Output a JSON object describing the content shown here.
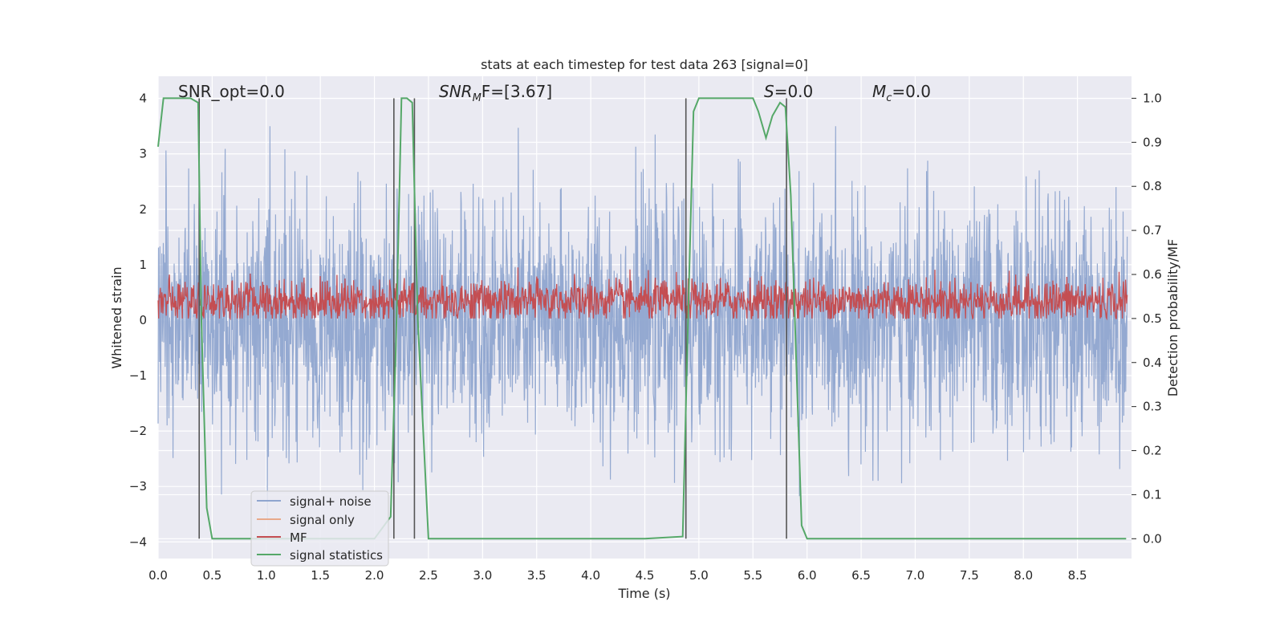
{
  "chart_data": {
    "type": "line",
    "title": "stats at each timestep for test data 263 [signal=0]",
    "xlabel": "Time (s)",
    "ylabel": "Whitened strain",
    "y2label": "Detection probability/MF",
    "xlim": [
      0.0,
      9.0
    ],
    "ylim": [
      -4.3,
      4.4
    ],
    "y2lim": [
      -0.045,
      1.05
    ],
    "xticks": [
      "0.0",
      "0.5",
      "1.0",
      "1.5",
      "2.0",
      "2.5",
      "3.0",
      "3.5",
      "4.0",
      "4.5",
      "5.0",
      "5.5",
      "6.0",
      "6.5",
      "7.0",
      "7.5",
      "8.0",
      "8.5"
    ],
    "yticks": [
      "4",
      "3",
      "2",
      "1",
      "0",
      "−1",
      "−2",
      "−3",
      "−4"
    ],
    "y2ticks": [
      "1.0",
      "0.9",
      "0.8",
      "0.7",
      "0.6",
      "0.5",
      "0.4",
      "0.3",
      "0.2",
      "0.1",
      "0.0"
    ],
    "grid": true,
    "legend_position": "lower-left",
    "annotations": {
      "snr_opt": "SNR_opt=0.0",
      "snr_mf_main": "SNR",
      "snr_mf_sub": "M",
      "snr_mf_rest": "F=[3.67]",
      "s_main": "S",
      "s_rest": "=0.0",
      "mc_main": "M",
      "mc_sub": "c",
      "mc_rest": "=0.0"
    },
    "series": [
      {
        "name": "signal+ noise",
        "color": "#8fa5cf",
        "description_range": [
          -3.6,
          3.5
        ]
      },
      {
        "name": "signal only",
        "color": "#e8a98a",
        "values": []
      },
      {
        "name": "MF",
        "color": "#c44e52",
        "range_on_y2": [
          0.5,
          0.63
        ]
      },
      {
        "name": "signal statistics",
        "color": "#55a868",
        "axis": "y2",
        "x": [
          0.0,
          0.05,
          0.1,
          0.2,
          0.3,
          0.37,
          0.4,
          0.45,
          0.5,
          1.0,
          1.5,
          2.0,
          2.15,
          2.2,
          2.25,
          2.3,
          2.35,
          2.4,
          2.5,
          3.0,
          3.5,
          4.0,
          4.5,
          4.85,
          4.9,
          4.95,
          5.0,
          5.5,
          5.55,
          5.62,
          5.68,
          5.75,
          5.8,
          5.85,
          5.95,
          6.0,
          6.5,
          7.0,
          7.5,
          8.0,
          8.5,
          8.95
        ],
        "y": [
          0.89,
          1.0,
          1.0,
          1.0,
          1.0,
          0.99,
          0.5,
          0.07,
          0.0,
          0.0,
          0.0,
          0.0,
          0.05,
          0.45,
          1.0,
          1.0,
          0.99,
          0.5,
          0.0,
          0.0,
          0.0,
          0.0,
          0.0,
          0.005,
          0.5,
          0.97,
          1.0,
          1.0,
          0.97,
          0.91,
          0.96,
          0.99,
          0.98,
          0.78,
          0.03,
          0.0,
          0.0,
          0.0,
          0.0,
          0.0,
          0.0,
          0.0
        ]
      }
    ],
    "vertical_markers": [
      0.38,
      2.18,
      2.37,
      4.88,
      5.81
    ],
    "colors": {
      "plot_bg": "#eaeaf2",
      "grid": "#ffffff",
      "marker_line": "#555555",
      "legend_bg": "#eaeaf2",
      "legend_border": "#cccccc"
    }
  }
}
